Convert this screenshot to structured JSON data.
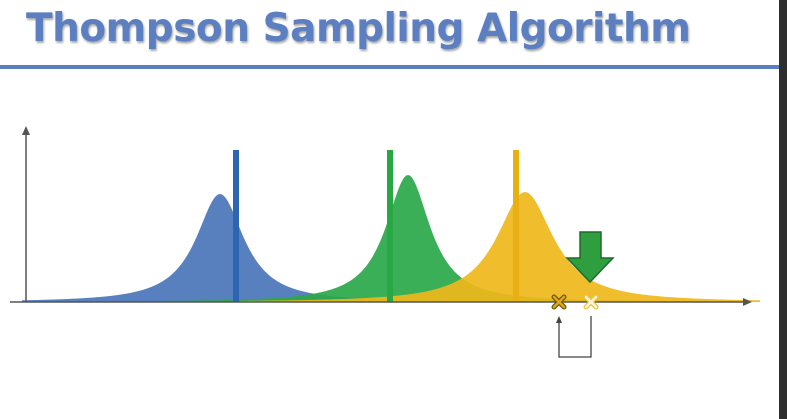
{
  "title": "Thompson Sampling Algorithm",
  "colors": {
    "title": "#5b7fc0",
    "blue": "#4a74b8",
    "blue_line": "#2c65b0",
    "green": "#2aa84a",
    "green_line": "#28a745",
    "yellow": "#efb71a",
    "yellow_line": "#e8b010",
    "arrow": "#2e9e3e",
    "axis": "#555555",
    "marker_outline": "#7a6a1a"
  },
  "icons": {
    "down_arrow": "down-arrow-icon",
    "sample_markers": [
      "x-marker-icon",
      "x-marker-icon"
    ],
    "bracket": "bracket-connector"
  }
}
